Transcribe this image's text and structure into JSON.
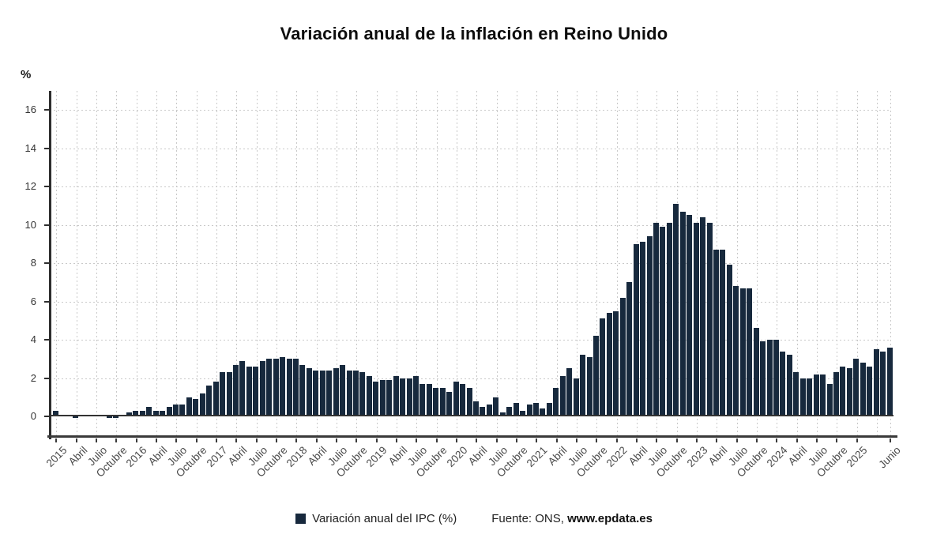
{
  "title": "Variación anual de la inflación en Reino Unido",
  "y_axis": {
    "unit_label": "%",
    "ticks": [
      0,
      2,
      4,
      6,
      8,
      10,
      12,
      14,
      16
    ],
    "min": -1,
    "max": 17
  },
  "legend": {
    "series_label": "Variación anual del IPC (%)",
    "source_prefix": "Fuente: ONS, ",
    "source_site": "www.epdata.es",
    "swatch_color": "#17293d"
  },
  "chart_data": {
    "type": "bar",
    "title": "Variación anual de la inflación en Reino Unido",
    "xlabel": "",
    "ylabel": "%",
    "ylim": [
      -1,
      17
    ],
    "grid": true,
    "legend_position": "bottom",
    "bar_color": "#17293d",
    "gridline_color": "#c9c9c9",
    "start_month": "2015-01",
    "end_month": "2025-06",
    "x_tick_labels": [
      "2015",
      "Abril",
      "Julio",
      "Octubre",
      "2016",
      "Abril",
      "Julio",
      "Octubre",
      "2017",
      "Abril",
      "Julio",
      "Octubre",
      "2018",
      "Abril",
      "Julio",
      "Octubre",
      "2019",
      "Abril",
      "Julio",
      "Octubre",
      "2020",
      "Abril",
      "Julio",
      "Octubre",
      "2021",
      "Abril",
      "Julio",
      "Octubre",
      "2022",
      "Abril",
      "Julio",
      "Octubre",
      "2023",
      "Abril",
      "Julio",
      "Octubre",
      "2024",
      "Abril",
      "Julio",
      "Octubre",
      "2025",
      "Junio"
    ],
    "x_tick_month_indices": [
      0,
      3,
      6,
      9,
      12,
      15,
      18,
      21,
      24,
      27,
      30,
      33,
      36,
      39,
      42,
      45,
      48,
      51,
      54,
      57,
      60,
      63,
      66,
      69,
      72,
      75,
      78,
      81,
      84,
      87,
      90,
      93,
      96,
      99,
      102,
      105,
      108,
      111,
      114,
      117,
      120,
      125
    ],
    "extra_gridline_month_indices": [
      123
    ],
    "series": [
      {
        "name": "Variación anual del IPC (%)",
        "values": [
          0.3,
          0.0,
          0.0,
          -0.1,
          0.1,
          0.0,
          0.1,
          0.0,
          -0.1,
          -0.1,
          0.1,
          0.2,
          0.3,
          0.3,
          0.5,
          0.3,
          0.3,
          0.5,
          0.6,
          0.6,
          1.0,
          0.9,
          1.2,
          1.6,
          1.8,
          2.3,
          2.3,
          2.7,
          2.9,
          2.6,
          2.6,
          2.9,
          3.0,
          3.0,
          3.1,
          3.0,
          3.0,
          2.7,
          2.5,
          2.4,
          2.4,
          2.4,
          2.5,
          2.7,
          2.4,
          2.4,
          2.3,
          2.1,
          1.8,
          1.9,
          1.9,
          2.1,
          2.0,
          2.0,
          2.1,
          1.7,
          1.7,
          1.5,
          1.5,
          1.3,
          1.8,
          1.7,
          1.5,
          0.8,
          0.5,
          0.6,
          1.0,
          0.2,
          0.5,
          0.7,
          0.3,
          0.6,
          0.7,
          0.4,
          0.7,
          1.5,
          2.1,
          2.5,
          2.0,
          3.2,
          3.1,
          4.2,
          5.1,
          5.4,
          5.5,
          6.2,
          7.0,
          9.0,
          9.1,
          9.4,
          10.1,
          9.9,
          10.1,
          11.1,
          10.7,
          10.5,
          10.1,
          10.4,
          10.1,
          8.7,
          8.7,
          7.9,
          6.8,
          6.7,
          6.7,
          4.6,
          3.9,
          4.0,
          4.0,
          3.4,
          3.2,
          2.3,
          2.0,
          2.0,
          2.2,
          2.2,
          1.7,
          2.3,
          2.6,
          2.5,
          3.0,
          2.8,
          2.6,
          3.5,
          3.4,
          3.6
        ]
      }
    ]
  }
}
